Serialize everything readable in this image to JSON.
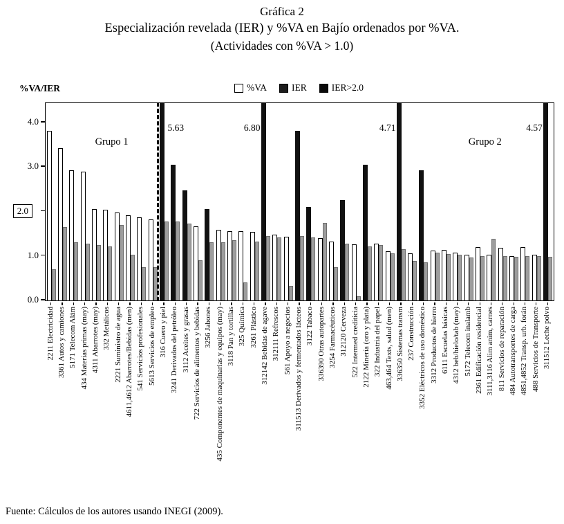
{
  "page": {
    "title": "Gráfica 2",
    "subtitle": "Especialización revelada (IER) y %VA en Bajío ordenados por %VA.",
    "subtitle2": "(Actividades con %VA > 1.0)",
    "source": "Fuente: Cálculos de los autores usando INEGI (2009)."
  },
  "legend": {
    "va_label": "%VA",
    "ier_label": "IER",
    "ier2_label": "IER>2.0"
  },
  "colors": {
    "va_bar": "#ffffff",
    "ier_bar_gray": "#9d9d9d",
    "ier2_bar_black": "#111111"
  },
  "chart_data": {
    "type": "bar",
    "title": "Gráfica 2 — Especialización revelada (IER) y %VA en Bajío ordenados por %VA (Actividades con %VA > 1.0)",
    "xlabel": "",
    "ylabel": "%VA/IER",
    "ylim": [
      0,
      4.0
    ],
    "grid": false,
    "legend_position": "top",
    "series_legend": [
      "%VA",
      "IER",
      "IER>2.0"
    ],
    "yticks": [
      {
        "value": 0,
        "label": "0.0"
      },
      {
        "value": 1,
        "label": "1.0"
      },
      {
        "value": 2,
        "label": "2.0",
        "boxed": true
      },
      {
        "value": 3,
        "label": "3.0"
      },
      {
        "value": 4,
        "label": "4.0"
      }
    ],
    "group_labels": [
      {
        "label": "Grupo 1"
      },
      {
        "label": "Grupo 2"
      }
    ],
    "group1_count": 10,
    "categories": [
      {
        "label": "2211 Electricidad",
        "type": "va",
        "value": 3.82,
        "gray": 0.7
      },
      {
        "label": "3361 Autos y camiones",
        "type": "va",
        "value": 3.42,
        "gray": 1.65
      },
      {
        "label": "5171 Telecom Alám",
        "type": "va",
        "value": 2.92,
        "gray": 1.3
      },
      {
        "label": "434 Materias primas (may)",
        "type": "va",
        "value": 2.9,
        "gray": 1.28
      },
      {
        "label": "4311 Abarrotes (may)",
        "type": "va",
        "value": 2.06,
        "gray": 1.25
      },
      {
        "label": "332 Metálicos",
        "type": "va",
        "value": 2.04,
        "gray": 1.22
      },
      {
        "label": "2221 Suministro de agua",
        "type": "va",
        "value": 1.98,
        "gray": 1.7
      },
      {
        "label": "4611,4612 Abarrotes/Bebidas (men)",
        "type": "va",
        "value": 1.92,
        "gray": 1.02
      },
      {
        "label": "541 Servicios profesionales",
        "type": "va",
        "value": 1.86,
        "gray": 0.75
      },
      {
        "label": "5613 Servicios de empleo",
        "type": "va",
        "value": 1.82,
        "gray": 0.74
      },
      {
        "label": "316 Cuero y piel",
        "type": "ier2",
        "value": 5.63,
        "gray": 1.78,
        "annotation": "5.63"
      },
      {
        "label": "3241 Derivados del petróleo",
        "type": "ier2",
        "value": 3.05,
        "gray": 1.78
      },
      {
        "label": "3112 Aceites y grasas",
        "type": "ier2",
        "value": 2.47,
        "gray": 1.72
      },
      {
        "label": "722 Servicios de alimentos y bebidas",
        "type": "va",
        "value": 1.67,
        "gray": 0.9
      },
      {
        "label": "3256 Jabones",
        "type": "ier2",
        "value": 2.06,
        "gray": 1.3
      },
      {
        "label": "435 Componentes de maquinarias y equipos (may)",
        "type": "va",
        "value": 1.58,
        "gray": 1.3
      },
      {
        "label": "3118 Pan y tortillas",
        "type": "va",
        "value": 1.56,
        "gray": 1.35
      },
      {
        "label": "325 Química",
        "type": "va",
        "value": 1.55,
        "gray": 0.4
      },
      {
        "label": "3261 Plástico",
        "type": "va",
        "value": 1.54,
        "gray": 1.33
      },
      {
        "label": "312142 Bebidas de agave",
        "type": "ier2",
        "value": 6.8,
        "gray": 1.45,
        "annotation": "6.80"
      },
      {
        "label": "312111 Refrescos",
        "type": "va",
        "value": 1.48,
        "gray": 1.42
      },
      {
        "label": "561 Apoyo a negocios",
        "type": "va",
        "value": 1.43,
        "gray": 0.33
      },
      {
        "label": "311513 Derivados y fermentados lácteos",
        "type": "ier2",
        "value": 3.82,
        "gray": 1.44
      },
      {
        "label": "3122 Tabaco",
        "type": "ier2",
        "value": 2.1,
        "gray": 1.42
      },
      {
        "label": "336390 Otras autopartes",
        "type": "va",
        "value": 1.4,
        "gray": 1.75
      },
      {
        "label": "3254 Farmacéuticos",
        "type": "va",
        "value": 1.32,
        "gray": 0.75
      },
      {
        "label": "312120 Cerveza",
        "type": "ier2",
        "value": 2.25,
        "gray": 1.28
      },
      {
        "label": "522 Intermed crediticia",
        "type": "va",
        "value": 1.26,
        "gray": 0.1
      },
      {
        "label": "2122 Minería (oro y plata)",
        "type": "ier2",
        "value": 3.05,
        "gray": 1.22
      },
      {
        "label": "322 Industria del papel",
        "type": "va",
        "value": 1.28,
        "gray": 1.24
      },
      {
        "label": "463,464 Texts, salud (men)",
        "type": "va",
        "value": 1.1,
        "gray": 1.06
      },
      {
        "label": "336350 Sistemas transm",
        "type": "ier2",
        "value": 4.71,
        "gray": 1.15,
        "annotation": "4.71"
      },
      {
        "label": "237 Construcción",
        "type": "va",
        "value": 1.06,
        "gray": 0.88
      },
      {
        "label": "3352 Eléctricos de uso doméstico",
        "type": "ier2",
        "value": 2.92,
        "gray": 0.86
      },
      {
        "label": "3312 Productos de hierro",
        "type": "va",
        "value": 1.12,
        "gray": 1.08
      },
      {
        "label": "6111 Escuelas básicas",
        "type": "va",
        "value": 1.14,
        "gray": 1.05
      },
      {
        "label": "4312 beb/hielo/tab (may)",
        "type": "va",
        "value": 1.08,
        "gray": 1.02
      },
      {
        "label": "5172 Telecom inalamb",
        "type": "va",
        "value": 1.02,
        "gray": 0.96
      },
      {
        "label": "2361 Edificación residencial",
        "type": "va",
        "value": 1.2,
        "gray": 1.0
      },
      {
        "label": "3111,3116 Alim anim, carnes",
        "type": "va",
        "value": 1.02,
        "gray": 1.38
      },
      {
        "label": "811 Servicios de reparación",
        "type": "va",
        "value": 1.18,
        "gray": 1.0
      },
      {
        "label": "484 Autotransportes de carga",
        "type": "va",
        "value": 1.0,
        "gray": 0.98
      },
      {
        "label": "4851,4852 Transp. urb. forán",
        "type": "va",
        "value": 1.2,
        "gray": 1.0
      },
      {
        "label": "488 Servicios de Transporte",
        "type": "va",
        "value": 1.02,
        "gray": 1.0
      },
      {
        "label": "311512 Leche polvo",
        "type": "ier2",
        "value": 4.57,
        "gray": 0.98,
        "annotation": "4.57"
      }
    ]
  }
}
